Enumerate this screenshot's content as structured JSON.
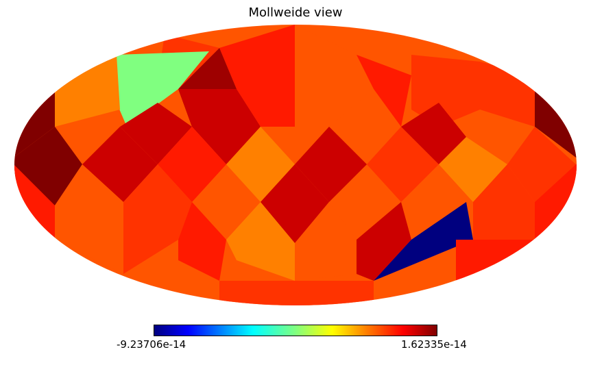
{
  "title": "Mollweide view",
  "colorbar": {
    "min_label": "-9.23706e-14",
    "max_label": "1.62335e-14",
    "colormap": "jet"
  },
  "chart_data": {
    "type": "heatmap",
    "projection": "mollweide",
    "value_range": [
      -9.23706e-14,
      1.62335e-14
    ],
    "colors": {
      "darkred": "#800000",
      "darkred2": "#9e0000",
      "crimson": "#cc0000",
      "red": "#ff1a00",
      "redorange": "#ff3300",
      "orange": "#ff5500",
      "lightorange": "#ff8000",
      "green": "#80ff80",
      "navy": "#00007f"
    }
  }
}
